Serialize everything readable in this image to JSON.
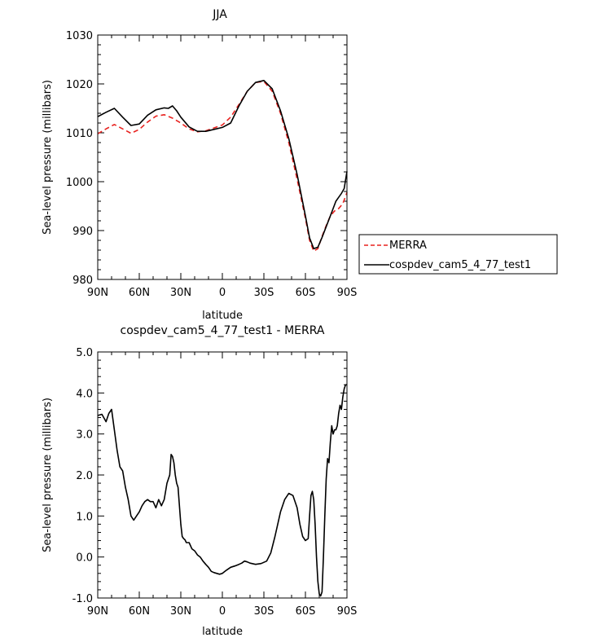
{
  "chart_data": [
    {
      "type": "line",
      "title": "JJA",
      "xlabel": "latitude",
      "ylabel": "Sea-level pressure (millibars)",
      "x_tick_labels": [
        "90N",
        "60N",
        "30N",
        "0",
        "30S",
        "60S",
        "90S"
      ],
      "x_tick_values": [
        90,
        60,
        30,
        0,
        -30,
        -60,
        -90
      ],
      "xlim": [
        90,
        -90
      ],
      "ylim": [
        980,
        1030
      ],
      "y_ticks": [
        980,
        990,
        1000,
        1010,
        1020,
        1030
      ],
      "y_tick_labels": [
        "980",
        "990",
        "1000",
        "1010",
        "1020",
        "1030"
      ],
      "legend": {
        "placement": "right"
      },
      "series": [
        {
          "name": "MERRA",
          "color": "#e8221f",
          "dash": "dashed",
          "x": [
            90,
            84,
            78,
            72,
            66,
            60,
            54,
            48,
            42,
            36,
            30,
            24,
            18,
            12,
            6,
            0,
            -6,
            -12,
            -18,
            -24,
            -30,
            -36,
            -42,
            -48,
            -54,
            -60,
            -63,
            -66,
            -69,
            -72,
            -75,
            -78,
            -81,
            -84,
            -87,
            -90
          ],
          "values": [
            1009.8,
            1010.8,
            1011.7,
            1010.8,
            1009.9,
            1010.7,
            1012.2,
            1013.4,
            1013.7,
            1013.0,
            1012.0,
            1010.8,
            1010.2,
            1010.4,
            1011.0,
            1011.6,
            1013.2,
            1015.8,
            1018.5,
            1020.3,
            1020.5,
            1018.5,
            1014.0,
            1008.0,
            1000.5,
            992.5,
            988.0,
            985.8,
            986.3,
            988.8,
            991.0,
            993.0,
            994.0,
            994.5,
            995.5,
            997.8
          ]
        },
        {
          "name": "cospdev_cam5_4_77_test1",
          "color": "#000000",
          "dash": "solid",
          "x": [
            90,
            84,
            78,
            72,
            66,
            60,
            54,
            48,
            42,
            39,
            36,
            33,
            30,
            24,
            18,
            12,
            6,
            0,
            -6,
            -12,
            -18,
            -24,
            -30,
            -36,
            -42,
            -48,
            -54,
            -60,
            -63,
            -66,
            -69,
            -72,
            -75,
            -78,
            -80,
            -82,
            -84,
            -86,
            -88,
            -90
          ],
          "values": [
            1013.3,
            1014.2,
            1015.0,
            1013.2,
            1011.5,
            1011.8,
            1013.6,
            1014.7,
            1015.1,
            1015.0,
            1015.5,
            1014.5,
            1013.2,
            1011.2,
            1010.3,
            1010.3,
            1010.7,
            1011.1,
            1012.0,
            1015.5,
            1018.5,
            1020.3,
            1020.7,
            1019.0,
            1014.5,
            1008.8,
            1001.5,
            993.0,
            988.5,
            986.3,
            986.6,
            988.6,
            990.8,
            993.0,
            994.5,
            996.0,
            996.8,
            997.6,
            998.6,
            1002.1
          ]
        }
      ]
    },
    {
      "type": "line",
      "title": "cospdev_cam5_4_77_test1 - MERRA",
      "xlabel": "latitude",
      "ylabel": "Sea-level pressure (millibars)",
      "x_tick_labels": [
        "90N",
        "60N",
        "30N",
        "0",
        "30S",
        "60S",
        "90S"
      ],
      "x_tick_values": [
        90,
        60,
        30,
        0,
        -30,
        -60,
        -90
      ],
      "xlim": [
        90,
        -90
      ],
      "ylim": [
        -1.0,
        5.0
      ],
      "y_ticks": [
        -1.0,
        0.0,
        1.0,
        2.0,
        3.0,
        4.0,
        5.0
      ],
      "y_tick_labels": [
        "-1.0",
        "0.0",
        "1.0",
        "2.0",
        "3.0",
        "4.0",
        "5.0"
      ],
      "series": [
        {
          "color": "#000000",
          "dash": "solid",
          "x": [
            90,
            87,
            84,
            82,
            80,
            78,
            76,
            74,
            72,
            70,
            68,
            66,
            64,
            62,
            60,
            58,
            56,
            54,
            52,
            50,
            48,
            46,
            44,
            42,
            40,
            38,
            37,
            36,
            35,
            34,
            33,
            32,
            30,
            29,
            28,
            27,
            26,
            24,
            22,
            20,
            18,
            16,
            14,
            12,
            10,
            8,
            6,
            4,
            2,
            0,
            -3,
            -6,
            -9,
            -12,
            -14,
            -16,
            -18,
            -20,
            -24,
            -28,
            -32,
            -35,
            -38,
            -40,
            -42,
            -45,
            -48,
            -51,
            -54,
            -56,
            -58,
            -60,
            -62,
            -63,
            -64,
            -65,
            -66,
            -67,
            -68,
            -69,
            -70,
            -71,
            -72,
            -73,
            -74,
            -75,
            -76,
            -77,
            -78,
            -79,
            -80,
            -81,
            -82,
            -83,
            -84,
            -85,
            -86,
            -87,
            -88,
            -89,
            -90
          ],
          "values": [
            3.45,
            3.48,
            3.3,
            3.5,
            3.6,
            3.1,
            2.6,
            2.2,
            2.1,
            1.7,
            1.4,
            1.0,
            0.9,
            1.0,
            1.1,
            1.25,
            1.35,
            1.4,
            1.35,
            1.35,
            1.2,
            1.4,
            1.25,
            1.4,
            1.8,
            2.0,
            2.5,
            2.45,
            2.3,
            2.0,
            1.8,
            1.7,
            0.8,
            0.5,
            0.45,
            0.42,
            0.35,
            0.35,
            0.2,
            0.15,
            0.05,
            0.0,
            -0.1,
            -0.18,
            -0.25,
            -0.35,
            -0.38,
            -0.4,
            -0.42,
            -0.4,
            -0.32,
            -0.25,
            -0.22,
            -0.18,
            -0.15,
            -0.1,
            -0.12,
            -0.15,
            -0.18,
            -0.16,
            -0.1,
            0.1,
            0.5,
            0.8,
            1.1,
            1.4,
            1.55,
            1.5,
            1.2,
            0.8,
            0.5,
            0.4,
            0.45,
            1.0,
            1.5,
            1.6,
            1.4,
            0.8,
            0.0,
            -0.6,
            -0.9,
            -0.95,
            -0.85,
            0.0,
            1.0,
            1.9,
            2.4,
            2.3,
            2.8,
            3.2,
            3.0,
            3.1,
            3.1,
            3.2,
            3.5,
            3.7,
            3.6,
            3.9,
            4.1,
            4.2,
            4.2
          ]
        }
      ]
    }
  ]
}
